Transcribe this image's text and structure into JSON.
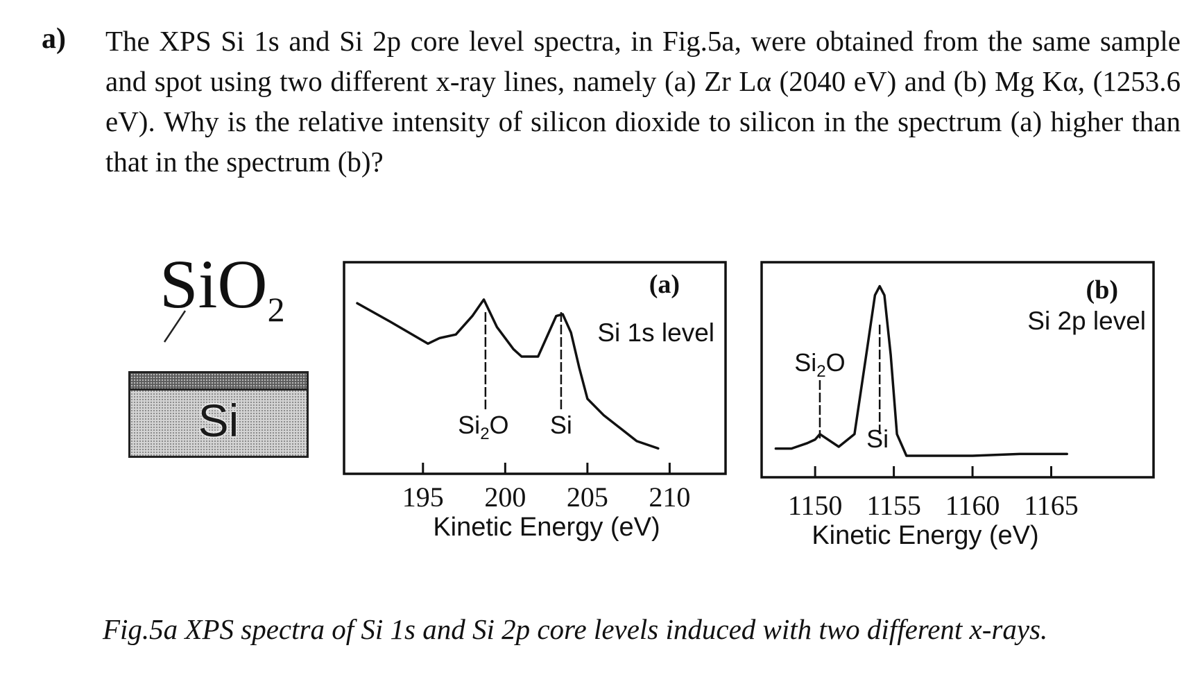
{
  "question": {
    "marker": "a)",
    "text": "The XPS Si 1s and Si 2p core level spectra, in Fig.5a, were obtained from the same sample and spot using two different x-ray lines, namely (a) Zr Lα (2040 eV) and  (b) Mg Kα, (1253.6 eV). Why is the relative intensity of silicon dioxide to silicon in the spectrum (a) higher than that in the spectrum (b)?"
  },
  "schematic": {
    "layer_label_main": "SiO",
    "layer_label_sub": "2",
    "substrate_label": "Si"
  },
  "charts": [
    {
      "type": "line",
      "panel_label": "(a)",
      "level_label": "Si 1s level",
      "xlabel": "Kinetic Energy (eV)",
      "xlim": [
        190.2,
        213.4
      ],
      "ylim": [
        0,
        100
      ],
      "xticks": [
        195,
        200,
        205,
        210
      ],
      "tick_labels": [
        "195",
        "200",
        "205",
        "210"
      ],
      "x": [
        191,
        193,
        195.3,
        196,
        197,
        198,
        198.7,
        199.5,
        200.5,
        201,
        202,
        202.5,
        203.1,
        203.5,
        204,
        204.5,
        205,
        206,
        207,
        208,
        209.3
      ],
      "y": [
        86,
        76,
        64,
        67,
        69,
        79,
        88,
        73,
        61,
        57,
        57,
        67,
        79,
        80,
        70,
        51,
        34,
        25,
        18,
        11,
        7
      ],
      "peaks": [
        {
          "label": "Si",
          "sub": "2",
          "tail": "O",
          "x": 198.8
        },
        {
          "label": "Si",
          "sub": "",
          "tail": "",
          "x": 203.4
        }
      ]
    },
    {
      "type": "line",
      "panel_label": "(b)",
      "level_label": "Si 2p level",
      "xlabel": "Kinetic Energy (eV)",
      "xlim": [
        1146.6,
        1171.5
      ],
      "ylim": [
        0,
        100
      ],
      "xticks": [
        1150,
        1155,
        1160,
        1165
      ],
      "tick_labels": [
        "1150",
        "1155",
        "1160",
        "1165"
      ],
      "x": [
        1147.5,
        1148.5,
        1149.5,
        1150,
        1150.3,
        1151.5,
        1152.5,
        1153.3,
        1153.8,
        1154.1,
        1154.4,
        1154.8,
        1155.2,
        1155.8,
        1157,
        1160,
        1163,
        1166
      ],
      "y": [
        9,
        9,
        12,
        14,
        17,
        10,
        17,
        64,
        94,
        99,
        94,
        61,
        17,
        5,
        5,
        5,
        6,
        6
      ],
      "peaks": [
        {
          "label": "Si",
          "sub": "2",
          "tail": "O",
          "x": 1150.3
        },
        {
          "label": "Si",
          "sub": "",
          "tail": "",
          "x": 1154.1
        }
      ]
    }
  ],
  "caption": "Fig.5a XPS spectra of Si 1s and Si 2p core levels induced with two different x-rays."
}
